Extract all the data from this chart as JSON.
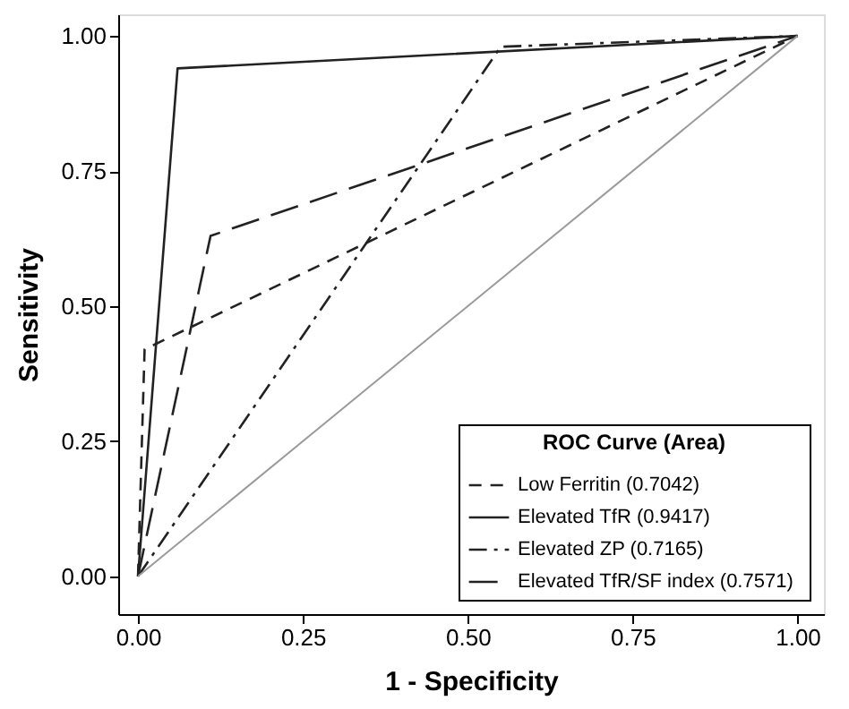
{
  "chart_data": {
    "type": "line",
    "xlabel": "1 - Specificity",
    "ylabel": "Sensitivity",
    "legend_title": "ROC Curve (Area)",
    "legend": "bottom right",
    "marker": "none",
    "xlim": [
      -0.03,
      1.04
    ],
    "ylim": [
      -0.07,
      1.04
    ],
    "xticks": [
      {
        "value": 0,
        "label": "0.00"
      },
      {
        "value": 0.25,
        "label": "0.25"
      },
      {
        "value": 0.5,
        "label": "0.50"
      },
      {
        "value": 0.75,
        "label": "0.75"
      },
      {
        "value": 1,
        "label": "1.00"
      }
    ],
    "yticks": [
      {
        "value": 0,
        "label": "0.00"
      },
      {
        "value": 0.25,
        "label": "0.25"
      },
      {
        "value": 0.5,
        "label": "0.50"
      },
      {
        "value": 0.75,
        "label": "0.75"
      },
      {
        "value": 1,
        "label": "1.00"
      }
    ],
    "series": [
      {
        "name": "Low Ferritin  (0.7042)",
        "color": "#222222",
        "line_style": "dashed",
        "x": [
          0,
          0.01,
          1
        ],
        "values": [
          0,
          0.42,
          1
        ]
      },
      {
        "name": "Elevated TfR  (0.9417)",
        "color": "#222222",
        "line_style": "solid",
        "x": [
          0,
          0.06,
          1
        ],
        "values": [
          0,
          0.94,
          1
        ]
      },
      {
        "name": "Elevated ZP  (0.7165)",
        "color": "#222222",
        "line_style": "dotted",
        "x": [
          0,
          0.55,
          1
        ],
        "values": [
          0,
          0.98,
          1
        ]
      },
      {
        "name": "Elevated TfR/SF index  (0.7571)",
        "color": "#222222",
        "line_style": "dashed",
        "x": [
          0,
          0.11,
          1
        ],
        "values": [
          0,
          0.63,
          1
        ]
      },
      {
        "color": "#9a9a9a",
        "line_style": "solid",
        "x": [
          0,
          1
        ],
        "values": [
          0,
          1
        ]
      }
    ]
  }
}
